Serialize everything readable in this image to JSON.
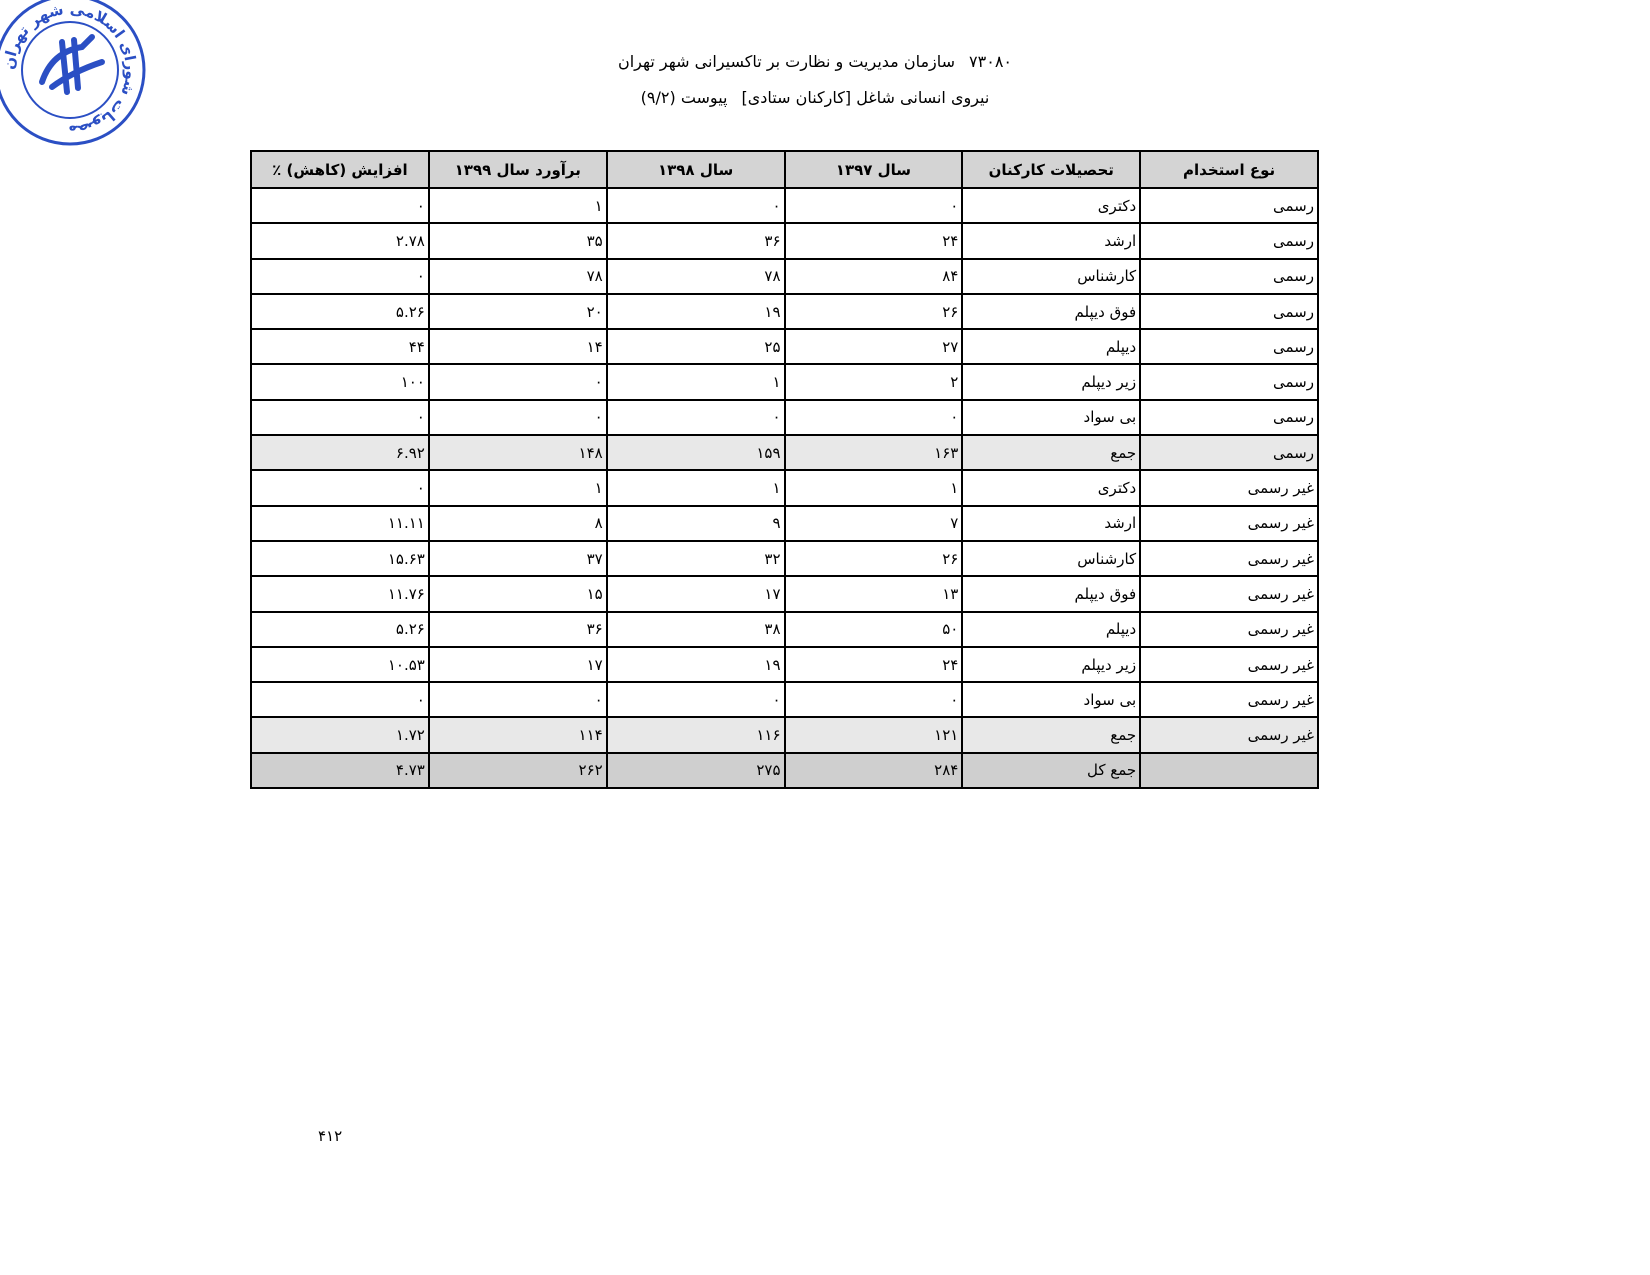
{
  "header": {
    "line1_code": "۷۳۰۸۰",
    "line1_text": "سازمان مدیریت و نظارت بر تاکسیرانی شهر تهران",
    "line2_text": "نیروی انسانی شاغل [کارکنان ستادی]",
    "line2_annex": "پیوست (۹/۲)"
  },
  "stamp": {
    "text": "مصوبات شورای اسلامی شهر تهران",
    "color": "#2b4fc4"
  },
  "table": {
    "columns": [
      "نوع استخدام",
      "تحصیلات کارکنان",
      "سال ۱۳۹۷",
      "سال ۱۳۹۸",
      "برآورد سال ۱۳۹۹",
      "افزایش (کاهش)   ٪"
    ],
    "rows": [
      [
        "رسمی",
        "دکتری",
        "۰",
        "۰",
        "۱",
        "۰"
      ],
      [
        "رسمی",
        "ارشد",
        "۲۴",
        "۳۶",
        "۳۵",
        "۲.۷۸"
      ],
      [
        "رسمی",
        "کارشناس",
        "۸۴",
        "۷۸",
        "۷۸",
        "۰"
      ],
      [
        "رسمی",
        "فوق دیپلم",
        "۲۶",
        "۱۹",
        "۲۰",
        "۵.۲۶"
      ],
      [
        "رسمی",
        "دیپلم",
        "۲۷",
        "۲۵",
        "۱۴",
        "۴۴"
      ],
      [
        "رسمی",
        "زیر دیپلم",
        "۲",
        "۱",
        "۰",
        "۱۰۰"
      ],
      [
        "رسمی",
        "بی سواد",
        "۰",
        "۰",
        "۰",
        "۰"
      ],
      [
        "رسمی",
        "جمع",
        "۱۶۳",
        "۱۵۹",
        "۱۴۸",
        "۶.۹۲"
      ],
      [
        "غیر رسمی",
        "دکتری",
        "۱",
        "۱",
        "۱",
        "۰"
      ],
      [
        "غیر رسمی",
        "ارشد",
        "۷",
        "۹",
        "۸",
        "۱۱.۱۱"
      ],
      [
        "غیر رسمی",
        "کارشناس",
        "۲۶",
        "۳۲",
        "۳۷",
        "۱۵.۶۳"
      ],
      [
        "غیر رسمی",
        "فوق دیپلم",
        "۱۳",
        "۱۷",
        "۱۵",
        "۱۱.۷۶"
      ],
      [
        "غیر رسمی",
        "دیپلم",
        "۵۰",
        "۳۸",
        "۳۶",
        "۵.۲۶"
      ],
      [
        "غیر رسمی",
        "زیر دیپلم",
        "۲۴",
        "۱۹",
        "۱۷",
        "۱۰.۵۳"
      ],
      [
        "غیر رسمی",
        "بی سواد",
        "۰",
        "۰",
        "۰",
        "۰"
      ],
      [
        "غیر رسمی",
        "جمع",
        "۱۲۱",
        "۱۱۶",
        "۱۱۴",
        "۱.۷۲"
      ],
      [
        "",
        "جمع کل",
        "۲۸۴",
        "۲۷۵",
        "۲۶۲",
        "۴.۷۳"
      ]
    ],
    "subtotal_rows": [
      7,
      15
    ],
    "total_row": 16
  },
  "page_number": "۴۱۲"
}
